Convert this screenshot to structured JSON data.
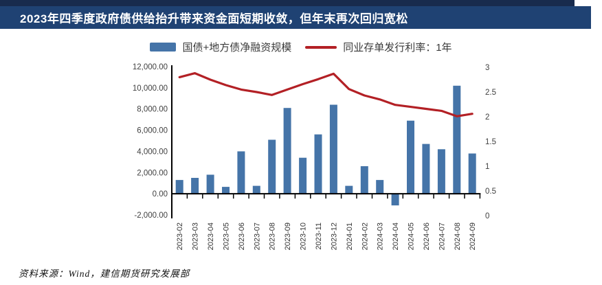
{
  "header": {
    "title": "2023年四季度政府债供给抬升带来资金面短期收敛，但年末再次回归宽松"
  },
  "chart_data": {
    "type": "bar+line combo",
    "categories": [
      "2023-02",
      "2023-03",
      "2023-04",
      "2023-05",
      "2023-06",
      "2023-07",
      "2023-08",
      "2023-09",
      "2023-10",
      "2023-11",
      "2023-12",
      "2024-01",
      "2024-02",
      "2024-03",
      "2024-04",
      "2024-05",
      "2024-06",
      "2024-07",
      "2024-08",
      "2024-09"
    ],
    "series": [
      {
        "name": "国债+地方债净融资规模",
        "type": "bar",
        "axis": "left",
        "color": "#4574A8",
        "values": [
          1300,
          1500,
          1800,
          650,
          4000,
          750,
          5100,
          8100,
          3400,
          5600,
          8400,
          750,
          2600,
          1300,
          -1100,
          6900,
          4700,
          4200,
          10200,
          3800
        ]
      },
      {
        "name": "同业存单发行利率：1年",
        "type": "line",
        "axis": "right",
        "color": "#B32025",
        "values": [
          2.8,
          2.88,
          2.75,
          2.64,
          2.55,
          2.5,
          2.44,
          2.55,
          2.66,
          2.76,
          2.87,
          2.56,
          2.43,
          2.35,
          2.24,
          2.2,
          2.16,
          2.12,
          2.01,
          2.06
        ]
      }
    ],
    "left_axis": {
      "min": -2000,
      "max": 12000,
      "step": 2000,
      "tick_labels": [
        "12,000.00",
        "10,000.00",
        "8,000.00",
        "6,000.00",
        "4,000.00",
        "2,000.00",
        "0.00",
        "-2,000.00"
      ]
    },
    "right_axis": {
      "min": 0,
      "max": 3,
      "step": 0.5,
      "tick_labels": [
        "3",
        "2.5",
        "2",
        "1.5",
        "1",
        "0.5",
        "0"
      ]
    },
    "grid": false,
    "legend_position": "top"
  },
  "footer": {
    "source": "资料来源：Wind，建信期货研究发展部"
  },
  "colors": {
    "header_bar": "#1F4273",
    "header_top_strip": "#182B4D",
    "bar_fill": "#4574A8",
    "line_stroke": "#B32025",
    "axis_text": "#3F3F3F"
  }
}
